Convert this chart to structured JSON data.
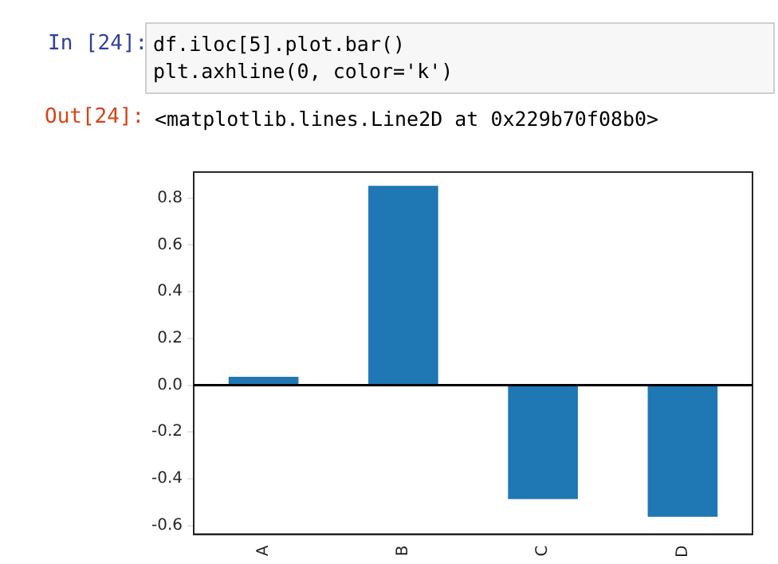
{
  "chart_data": {
    "type": "bar",
    "categories": [
      "A",
      "B",
      "C",
      "D"
    ],
    "values": [
      0.036,
      0.852,
      -0.487,
      -0.563
    ],
    "color": "#1f77b4",
    "ylim": [
      -0.637,
      0.911
    ],
    "yticks": [
      -0.6,
      -0.4,
      -0.2,
      {
        "value": 0,
        "label": "0.0"
      },
      0.2,
      0.4,
      0.6,
      0.8
    ],
    "grid": false,
    "legend": false,
    "ref_lines": [
      {
        "axis": "y",
        "value": 0,
        "color": "#000000"
      }
    ],
    "annotations": [
      "In [24]:",
      "df.iloc[5].plot.bar()",
      "plt.axhline(0, color='k')",
      "Out[24]:",
      "<matplotlib.lines.Line2D at 0x229b70f08b0>"
    ]
  }
}
